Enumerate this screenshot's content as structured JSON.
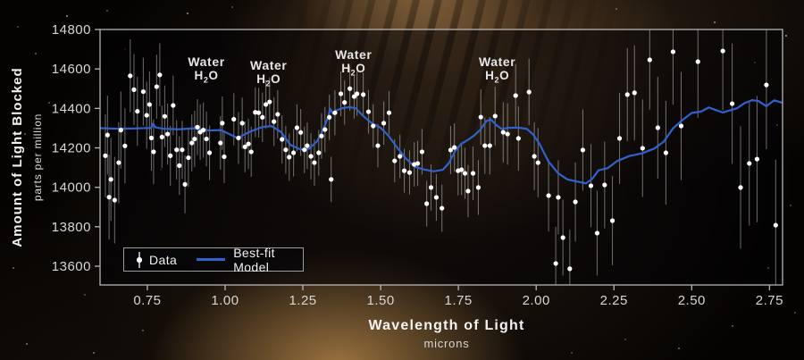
{
  "figure": {
    "kind": "transmission-spectrum-plot",
    "background_colors": {
      "space": "#050302",
      "planet_glow": "#785632",
      "glow_bright": "#b4864a"
    },
    "frame_color": "#b5b5b5",
    "accent_blue": "#2f62cc",
    "point_color": "#ffffff"
  },
  "chart_data": {
    "type": "scatter",
    "title": "",
    "xlabel": "Wavelength of Light",
    "xlabel_units": "microns",
    "ylabel": "Amount of Light Blocked",
    "ylabel_units": "parts per million",
    "xlim": [
      0.598,
      2.792
    ],
    "ylim": [
      13505,
      14800
    ],
    "x_ticks": [
      "0.75",
      "1.00",
      "1.25",
      "1.50",
      "1.75",
      "2.00",
      "2.25",
      "2.50",
      "2.75"
    ],
    "y_ticks": [
      "14800",
      "14600",
      "14400",
      "14200",
      "14000",
      "13800",
      "13600"
    ],
    "grid": false,
    "legend_position": "lower left",
    "legend": {
      "data_label": "Data",
      "model_label": "Best-fit Model"
    },
    "annotations": [
      {
        "x": 0.94,
        "y": 14670,
        "line1": "Water",
        "formula": {
          "pre": "H",
          "sub": "2",
          "post": "O"
        }
      },
      {
        "x": 1.14,
        "y": 14650,
        "line1": "Water",
        "formula": {
          "pre": "H",
          "sub": "2",
          "post": "O"
        }
      },
      {
        "x": 1.413,
        "y": 14705,
        "line1": "Water",
        "formula": {
          "pre": "H",
          "sub": "2",
          "post": "O"
        }
      },
      {
        "x": 1.875,
        "y": 14668,
        "line1": "Water",
        "formula": {
          "pre": "H",
          "sub": "2",
          "post": "O"
        }
      }
    ],
    "series": [
      {
        "name": "Data",
        "type": "scatter",
        "marker": "circle",
        "color": "#ffffff",
        "errorbar_color": "rgba(255,255,255,0.38)",
        "points": [
          [
            0.615,
            14160,
            210
          ],
          [
            0.622,
            14265,
            200
          ],
          [
            0.627,
            13950,
            215
          ],
          [
            0.633,
            14040,
            210
          ],
          [
            0.645,
            13935,
            220
          ],
          [
            0.658,
            14125,
            205
          ],
          [
            0.665,
            14290,
            195
          ],
          [
            0.678,
            14210,
            190
          ],
          [
            0.695,
            14565,
            185
          ],
          [
            0.707,
            14495,
            180
          ],
          [
            0.718,
            14385,
            175
          ],
          [
            0.737,
            14485,
            172
          ],
          [
            0.748,
            14365,
            170
          ],
          [
            0.757,
            14420,
            168
          ],
          [
            0.763,
            14250,
            166
          ],
          [
            0.77,
            14180,
            164
          ],
          [
            0.78,
            14510,
            162
          ],
          [
            0.79,
            14570,
            160
          ],
          [
            0.797,
            14255,
            158
          ],
          [
            0.806,
            14360,
            156
          ],
          [
            0.815,
            14270,
            155
          ],
          [
            0.824,
            14160,
            153
          ],
          [
            0.833,
            14415,
            151
          ],
          [
            0.844,
            14190,
            150
          ],
          [
            0.853,
            14110,
            149
          ],
          [
            0.862,
            14190,
            148
          ],
          [
            0.871,
            14015,
            147
          ],
          [
            0.882,
            14150,
            146
          ],
          [
            0.893,
            14225,
            144
          ],
          [
            0.902,
            14245,
            143
          ],
          [
            0.911,
            14305,
            142
          ],
          [
            0.92,
            14280,
            141
          ],
          [
            0.93,
            14290,
            140
          ],
          [
            0.94,
            14245,
            139
          ],
          [
            0.95,
            14175,
            138
          ],
          [
            0.985,
            14225,
            136
          ],
          [
            0.991,
            14325,
            135
          ],
          [
            0.997,
            14155,
            134
          ],
          [
            1.028,
            14345,
            132
          ],
          [
            1.043,
            14250,
            131
          ],
          [
            1.055,
            14325,
            130
          ],
          [
            1.064,
            14205,
            129
          ],
          [
            1.075,
            14220,
            128
          ],
          [
            1.084,
            14180,
            127
          ],
          [
            1.097,
            14380,
            126
          ],
          [
            1.108,
            14378,
            126
          ],
          [
            1.12,
            14355,
            125
          ],
          [
            1.131,
            14420,
            124
          ],
          [
            1.143,
            14433,
            124
          ],
          [
            1.157,
            14333,
            123
          ],
          [
            1.169,
            14370,
            122
          ],
          [
            1.183,
            14243,
            122
          ],
          [
            1.195,
            14190,
            121
          ],
          [
            1.206,
            14153,
            120
          ],
          [
            1.22,
            14175,
            120
          ],
          [
            1.231,
            14302,
            119
          ],
          [
            1.243,
            14278,
            119
          ],
          [
            1.255,
            14190,
            118
          ],
          [
            1.264,
            14211,
            118
          ],
          [
            1.276,
            14157,
            117
          ],
          [
            1.287,
            14125,
            117
          ],
          [
            1.301,
            14175,
            116
          ],
          [
            1.31,
            14260,
            116
          ],
          [
            1.321,
            14293,
            115
          ],
          [
            1.335,
            14355,
            115
          ],
          [
            1.341,
            14040,
            115
          ],
          [
            1.353,
            14378,
            114
          ],
          [
            1.372,
            14474,
            114
          ],
          [
            1.384,
            14430,
            113
          ],
          [
            1.401,
            14500,
            113
          ],
          [
            1.415,
            14460,
            112
          ],
          [
            1.424,
            14474,
            112
          ],
          [
            1.444,
            14470,
            111
          ],
          [
            1.461,
            14383,
            111
          ],
          [
            1.476,
            14311,
            110
          ],
          [
            1.491,
            14211,
            110
          ],
          [
            1.51,
            14325,
            110
          ],
          [
            1.527,
            14378,
            109
          ],
          [
            1.545,
            14134,
            109
          ],
          [
            1.562,
            14157,
            110
          ],
          [
            1.576,
            14084,
            111
          ],
          [
            1.593,
            14075,
            112
          ],
          [
            1.608,
            14116,
            113
          ],
          [
            1.619,
            14121,
            114
          ],
          [
            1.633,
            14180,
            115
          ],
          [
            1.648,
            13917,
            116
          ],
          [
            1.662,
            13999,
            117
          ],
          [
            1.679,
            13949,
            118
          ],
          [
            1.697,
            13894,
            120
          ],
          [
            1.725,
            14189,
            122
          ],
          [
            1.737,
            14202,
            123
          ],
          [
            1.749,
            14084,
            125
          ],
          [
            1.76,
            14089,
            128
          ],
          [
            1.771,
            14071,
            130
          ],
          [
            1.781,
            13981,
            133
          ],
          [
            1.797,
            14071,
            136
          ],
          [
            1.814,
            13999,
            139
          ],
          [
            1.822,
            14356,
            141
          ],
          [
            1.835,
            14211,
            143
          ],
          [
            1.851,
            14211,
            146
          ],
          [
            1.868,
            14361,
            149
          ],
          [
            1.894,
            14279,
            153
          ],
          [
            1.908,
            14270,
            156
          ],
          [
            1.934,
            14465,
            160
          ],
          [
            1.943,
            14248,
            163
          ],
          [
            1.977,
            14483,
            168
          ],
          [
            1.994,
            14157,
            172
          ],
          [
            2.006,
            14125,
            176
          ],
          [
            2.04,
            13958,
            182
          ],
          [
            2.063,
            13614,
            186
          ],
          [
            2.071,
            13949,
            188
          ],
          [
            2.086,
            13745,
            192
          ],
          [
            2.108,
            13587,
            197
          ],
          [
            2.126,
            13926,
            201
          ],
          [
            2.15,
            14189,
            206
          ],
          [
            2.176,
            14008,
            211
          ],
          [
            2.196,
            13768,
            215
          ],
          [
            2.22,
            14012,
            220
          ],
          [
            2.245,
            13831,
            226
          ],
          [
            2.268,
            14248,
            231
          ],
          [
            2.293,
            14470,
            236
          ],
          [
            2.316,
            14479,
            241
          ],
          [
            2.342,
            14198,
            247
          ],
          [
            2.365,
            14646,
            252
          ],
          [
            2.391,
            14302,
            258
          ],
          [
            2.417,
            14175,
            263
          ],
          [
            2.44,
            14687,
            268
          ],
          [
            2.466,
            14311,
            274
          ],
          [
            2.52,
            14637,
            285
          ],
          [
            2.6,
            14691,
            300
          ],
          [
            2.63,
            14424,
            305
          ],
          [
            2.657,
            13999,
            310
          ],
          [
            2.685,
            14121,
            315
          ],
          [
            2.71,
            14143,
            320
          ],
          [
            2.74,
            14519,
            325
          ],
          [
            2.77,
            13808,
            332
          ]
        ]
      },
      {
        "name": "Best-fit Model",
        "type": "line",
        "color": "#2f62cc",
        "points": [
          [
            0.598,
            14300
          ],
          [
            0.65,
            14297
          ],
          [
            0.7,
            14298
          ],
          [
            0.74,
            14300
          ],
          [
            0.762,
            14300
          ],
          [
            0.768,
            14322
          ],
          [
            0.776,
            14304
          ],
          [
            0.8,
            14297
          ],
          [
            0.85,
            14294
          ],
          [
            0.9,
            14299
          ],
          [
            0.95,
            14288
          ],
          [
            0.985,
            14290
          ],
          [
            1.0,
            14280
          ],
          [
            1.04,
            14250
          ],
          [
            1.08,
            14282
          ],
          [
            1.12,
            14306
          ],
          [
            1.15,
            14310
          ],
          [
            1.18,
            14280
          ],
          [
            1.21,
            14215
          ],
          [
            1.24,
            14193
          ],
          [
            1.27,
            14196
          ],
          [
            1.295,
            14232
          ],
          [
            1.315,
            14290
          ],
          [
            1.33,
            14352
          ],
          [
            1.338,
            14398
          ],
          [
            1.347,
            14372
          ],
          [
            1.358,
            14390
          ],
          [
            1.375,
            14400
          ],
          [
            1.4,
            14407
          ],
          [
            1.42,
            14400
          ],
          [
            1.445,
            14360
          ],
          [
            1.47,
            14327
          ],
          [
            1.5,
            14301
          ],
          [
            1.525,
            14262
          ],
          [
            1.55,
            14208
          ],
          [
            1.58,
            14148
          ],
          [
            1.61,
            14104
          ],
          [
            1.64,
            14090
          ],
          [
            1.67,
            14081
          ],
          [
            1.7,
            14089
          ],
          [
            1.72,
            14124
          ],
          [
            1.74,
            14185
          ],
          [
            1.76,
            14221
          ],
          [
            1.78,
            14240
          ],
          [
            1.8,
            14262
          ],
          [
            1.82,
            14291
          ],
          [
            1.84,
            14336
          ],
          [
            1.855,
            14343
          ],
          [
            1.872,
            14315
          ],
          [
            1.89,
            14295
          ],
          [
            1.91,
            14302
          ],
          [
            1.945,
            14302
          ],
          [
            1.97,
            14296
          ],
          [
            1.99,
            14268
          ],
          [
            2.01,
            14222
          ],
          [
            2.04,
            14130
          ],
          [
            2.07,
            14072
          ],
          [
            2.1,
            14040
          ],
          [
            2.13,
            14030
          ],
          [
            2.16,
            14020
          ],
          [
            2.18,
            14042
          ],
          [
            2.2,
            14086
          ],
          [
            2.23,
            14097
          ],
          [
            2.26,
            14133
          ],
          [
            2.3,
            14159
          ],
          [
            2.34,
            14172
          ],
          [
            2.38,
            14197
          ],
          [
            2.41,
            14231
          ],
          [
            2.44,
            14299
          ],
          [
            2.47,
            14341
          ],
          [
            2.5,
            14377
          ],
          [
            2.53,
            14384
          ],
          [
            2.555,
            14405
          ],
          [
            2.58,
            14390
          ],
          [
            2.6,
            14379
          ],
          [
            2.62,
            14389
          ],
          [
            2.645,
            14400
          ],
          [
            2.67,
            14427
          ],
          [
            2.695,
            14442
          ],
          [
            2.715,
            14437
          ],
          [
            2.74,
            14411
          ],
          [
            2.765,
            14441
          ],
          [
            2.792,
            14428
          ]
        ]
      }
    ]
  }
}
